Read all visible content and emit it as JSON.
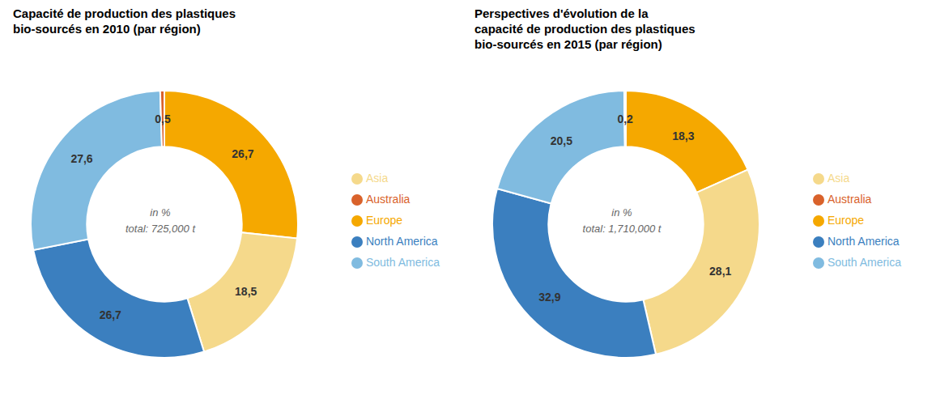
{
  "chart_data": [
    {
      "type": "pie",
      "title": "Capacité de production des plastiques\nbio-sourcés en 2010 (par région)",
      "categories": [
        "Europe",
        "Asia",
        "North America",
        "South America",
        "Australia"
      ],
      "values": [
        26.7,
        18.5,
        26.7,
        27.6,
        0.5
      ],
      "value_labels": [
        "26,7",
        "18,5",
        "26,7",
        "27,6",
        "0,5"
      ],
      "colors": [
        "#F5A800",
        "#F5D98B",
        "#3B7FBF",
        "#80BBE0",
        "#D9622B"
      ],
      "annotations": [
        "in %",
        "total: 725,000 t"
      ],
      "data_labels": true,
      "legend": "right"
    },
    {
      "type": "pie",
      "title": "Perspectives d'évolution de la\ncapacité de production des plastiques\nbio-sourcés en 2015 (par région)",
      "categories": [
        "Europe",
        "Asia",
        "North America",
        "South America",
        "Australia"
      ],
      "values": [
        18.3,
        28.1,
        32.9,
        20.5,
        0.2
      ],
      "value_labels": [
        "18,3",
        "28,1",
        "32,9",
        "20,5",
        "0,2"
      ],
      "colors": [
        "#F5A800",
        "#F5D98B",
        "#3B7FBF",
        "#80BBE0",
        "#D9622B"
      ],
      "annotations": [
        "in %",
        "total: 1,710,000 t"
      ],
      "data_labels": true,
      "legend": "right"
    }
  ]
}
